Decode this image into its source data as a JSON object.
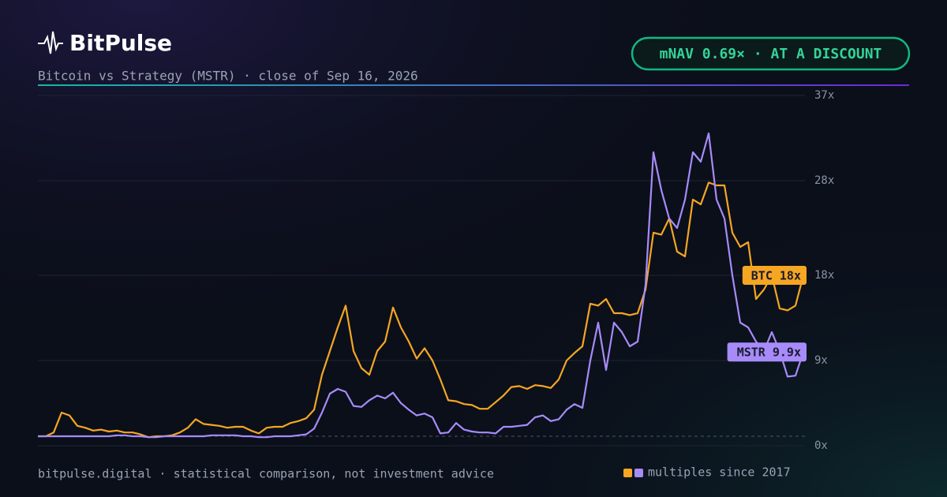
{
  "chart_data": {
    "type": "line",
    "title": "BitPulse",
    "subtitle": "Bitcoin vs Strategy (MSTR) · close of Sep 16, 2026",
    "badge": "mNAV 0.69× · AT A DISCOUNT",
    "footer": "bitpulse.digital · statistical comparison, not investment advice",
    "legend_label": "multiples since 2017",
    "ylim": [
      0,
      37
    ],
    "yticks": [
      {
        "value": 0,
        "label": "0x"
      },
      {
        "value": 9,
        "label": "9x"
      },
      {
        "value": 18,
        "label": "18x"
      },
      {
        "value": 28,
        "label": "28x"
      },
      {
        "value": 37,
        "label": "37x"
      }
    ],
    "grid": true,
    "baseline": 1,
    "series": [
      {
        "name": "BTC",
        "color": "#f5a623",
        "end_label": "BTC 18x",
        "values": [
          1,
          1,
          1.4,
          3.5,
          3.2,
          2.1,
          1.9,
          1.6,
          1.7,
          1.5,
          1.6,
          1.4,
          1.4,
          1.2,
          0.9,
          1,
          1,
          1.1,
          1.4,
          1.9,
          2.8,
          2.3,
          2.2,
          2.1,
          1.9,
          2,
          2,
          1.6,
          1.3,
          1.9,
          2,
          2,
          2.4,
          2.6,
          2.9,
          3.8,
          7.5,
          10,
          12.5,
          14.8,
          10,
          8.2,
          7.5,
          10,
          11,
          14.6,
          12.5,
          11,
          9.2,
          10.3,
          9,
          7,
          4.8,
          4.7,
          4.4,
          4.3,
          3.9,
          3.9,
          4.6,
          5.3,
          6.2,
          6.3,
          6,
          6.4,
          6.3,
          6.1,
          7,
          9,
          9.8,
          10.5,
          15,
          14.8,
          15.5,
          14,
          14,
          13.8,
          14,
          16.5,
          22.5,
          22.3,
          24,
          20.5,
          20,
          26,
          25.5,
          27.8,
          27.5,
          27.5,
          22.5,
          21,
          21.5,
          15.5,
          16.5,
          18,
          14.5,
          14.3,
          14.8,
          18
        ]
      },
      {
        "name": "MSTR",
        "color": "#a78bfa",
        "end_label": "MSTR 9.9x",
        "values": [
          1,
          1,
          1,
          1,
          1,
          1,
          1,
          1,
          1,
          1,
          1.1,
          1.1,
          1,
          1,
          0.9,
          0.9,
          1,
          1,
          1,
          1,
          1,
          1,
          1.1,
          1.1,
          1.1,
          1.1,
          1,
          1,
          0.9,
          0.9,
          1,
          1,
          1,
          1.1,
          1.2,
          1.8,
          3.5,
          5.5,
          6,
          5.7,
          4.2,
          4.1,
          4.8,
          5.3,
          5,
          5.6,
          4.5,
          3.8,
          3.2,
          3.4,
          3,
          1.3,
          1.4,
          2.4,
          1.7,
          1.5,
          1.4,
          1.4,
          1.3,
          2,
          2,
          2.1,
          2.2,
          3,
          3.2,
          2.6,
          2.8,
          3.8,
          4.4,
          4,
          9,
          13,
          8,
          13,
          12,
          10.5,
          11,
          17,
          31,
          27,
          24,
          23,
          26,
          31,
          30,
          33,
          26,
          24,
          18,
          13,
          12.5,
          11,
          10,
          12,
          10,
          7.3,
          7.4,
          9.9
        ]
      }
    ]
  }
}
